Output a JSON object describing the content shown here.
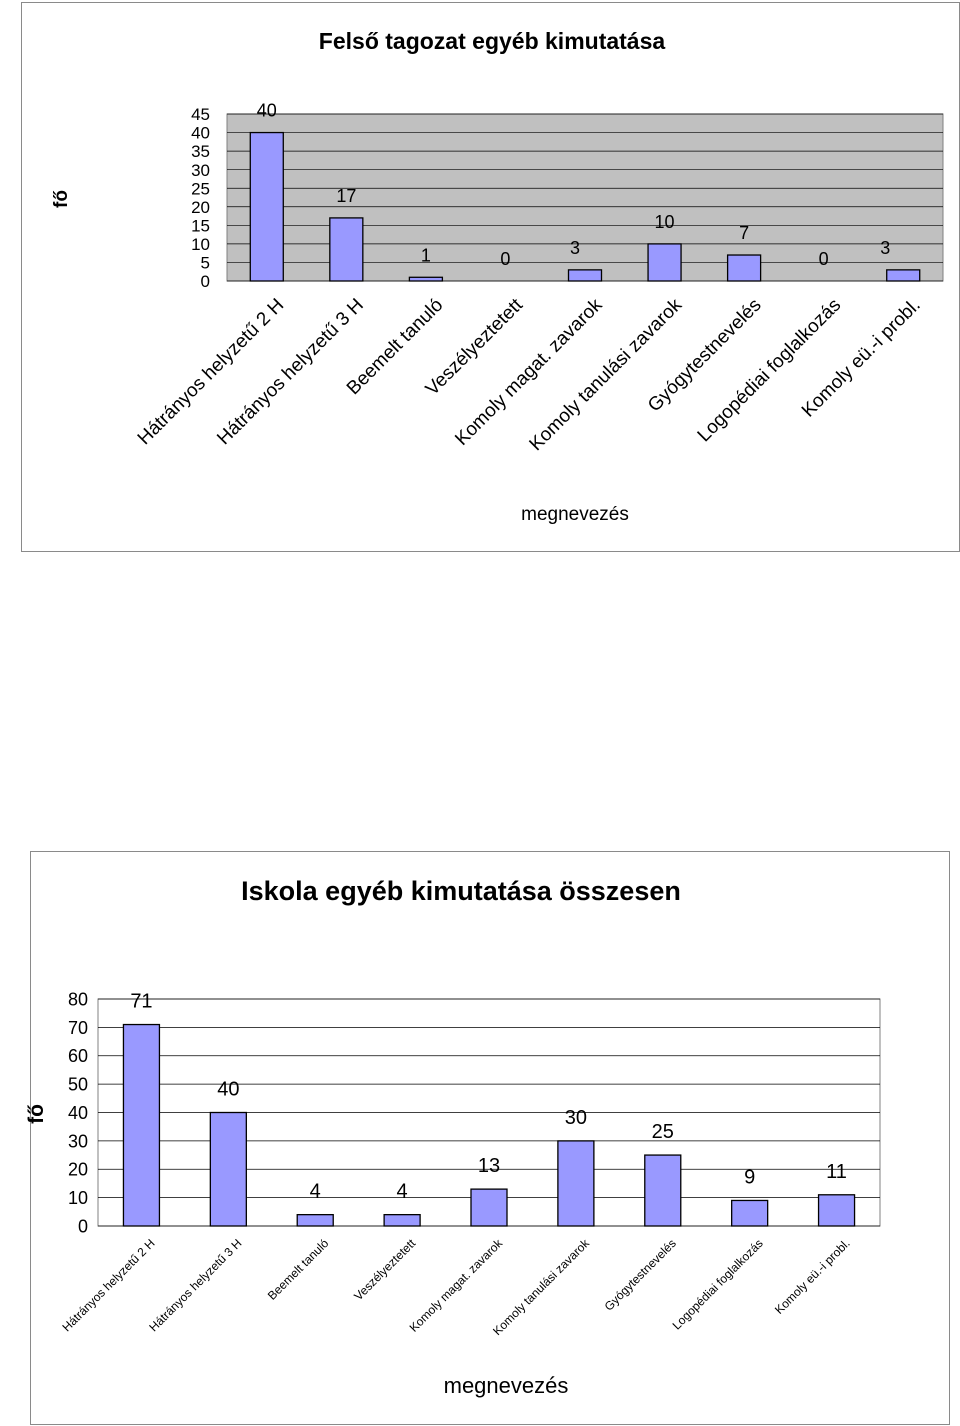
{
  "chart_data": [
    {
      "type": "bar",
      "title": "Felső tagozat egyéb kimutatása",
      "xlabel": "megnevezés",
      "ylabel": "fő",
      "categories": [
        "Hátrányos helyzetű 2 H",
        "Hátrányos helyzetű 3 H",
        "Beemelt tanuló",
        "Veszélyeztetett",
        "Komoly magat. zavarok",
        "Komoly tanulási zavarok",
        "Gyógytestnevelés",
        "Logopédiai foglalkozás",
        "Komoly eü.-i probl."
      ],
      "values": [
        40,
        17,
        1,
        0,
        3,
        10,
        7,
        0,
        3
      ],
      "ylim": [
        0,
        45
      ],
      "yticks": [
        "45",
        "40",
        "35",
        "30",
        "25",
        "20",
        "15",
        "10",
        "5",
        "0"
      ],
      "grid": true,
      "colors": {
        "bar": "#9999ff",
        "plot_background": "#c0c0c0"
      }
    },
    {
      "type": "bar",
      "title": "Iskola egyéb kimutatása összesen",
      "xlabel": "megnevezés",
      "ylabel": "fő",
      "categories": [
        "Hátrányos helyzetű 2 H",
        "Hátrányos helyzetű 3 H",
        "Beemelt tanuló",
        "Veszélyeztetett",
        "Komoly magat. zavarok",
        "Komoly tanulási zavarok",
        "Gyógytestnevelés",
        "Logopédiai foglalkozás",
        "Komoly eü.-i probl."
      ],
      "values": [
        71,
        40,
        4,
        4,
        13,
        30,
        25,
        9,
        11
      ],
      "ylim": [
        0,
        80
      ],
      "yticks": [
        "80",
        "70",
        "60",
        "50",
        "40",
        "30",
        "20",
        "10",
        "0"
      ],
      "grid": true,
      "colors": {
        "bar": "#9999ff",
        "plot_background": "#ffffff"
      }
    }
  ]
}
